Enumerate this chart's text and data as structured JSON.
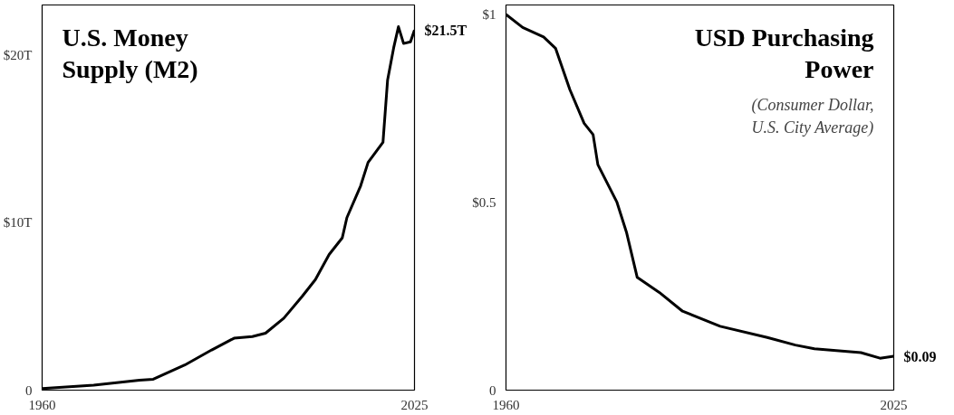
{
  "chart_data": [
    {
      "type": "line",
      "title": "U.S. Money\nSupply (M2)",
      "x": [
        1960,
        1969,
        1977,
        1979.4,
        1984.9,
        1989.6,
        1993.5,
        1996.7,
        1999,
        2002.2,
        2005.4,
        2007.7,
        2010.1,
        2012.4,
        2013.2,
        2015.6,
        2016.9,
        2019.5,
        2020.3,
        2021.4,
        2022.2,
        2023.1,
        2024.3,
        2025
      ],
      "series": [
        {
          "color": "#000000",
          "values": [
            0.1,
            0.3,
            0.6,
            0.65,
            1.5,
            2.4,
            3.1,
            3.2,
            3.4,
            4.3,
            5.6,
            6.6,
            8.1,
            9.1,
            10.3,
            12.2,
            13.6,
            14.8,
            18.5,
            20.5,
            21.7,
            20.7,
            20.8,
            21.5
          ]
        }
      ],
      "xlim": [
        1960,
        2025
      ],
      "xticks": [
        1960,
        2025
      ],
      "ylim": [
        0,
        23
      ],
      "yticks": [
        {
          "value": 0,
          "label": "0"
        },
        {
          "value": 10,
          "label": "$10T"
        },
        {
          "value": 20,
          "label": "$20T"
        }
      ],
      "annotations": [
        "$21.5T"
      ],
      "grid": false,
      "marker": "none",
      "line_style": "solid"
    },
    {
      "type": "line",
      "title": "USD Purchasing\nPower",
      "subtitle": "(Consumer Dollar,\nU.S. City Average)",
      "x": [
        1960,
        1962.8,
        1966.3,
        1968.3,
        1970.7,
        1973.1,
        1974.6,
        1975.4,
        1978.6,
        1980.2,
        1982,
        1985.7,
        1989.6,
        1995.9,
        2003.8,
        2008.5,
        2011.7,
        2019.5,
        2022.7,
        2025
      ],
      "series": [
        {
          "color": "#000000",
          "values": [
            1.0,
            0.965,
            0.94,
            0.91,
            0.8,
            0.71,
            0.68,
            0.6,
            0.5,
            0.42,
            0.3,
            0.26,
            0.21,
            0.17,
            0.14,
            0.12,
            0.11,
            0.1,
            0.085,
            0.09
          ]
        }
      ],
      "xlim": [
        1960,
        2025
      ],
      "xticks": [
        1960,
        2025
      ],
      "ylim": [
        0,
        1.025
      ],
      "yticks": [
        {
          "value": 0,
          "label": "0"
        },
        {
          "value": 0.5,
          "label": "$0.5"
        },
        {
          "value": 1,
          "label": "$1"
        }
      ],
      "annotations": [
        "$0.09"
      ],
      "grid": false,
      "marker": "none",
      "line_style": "solid"
    }
  ]
}
